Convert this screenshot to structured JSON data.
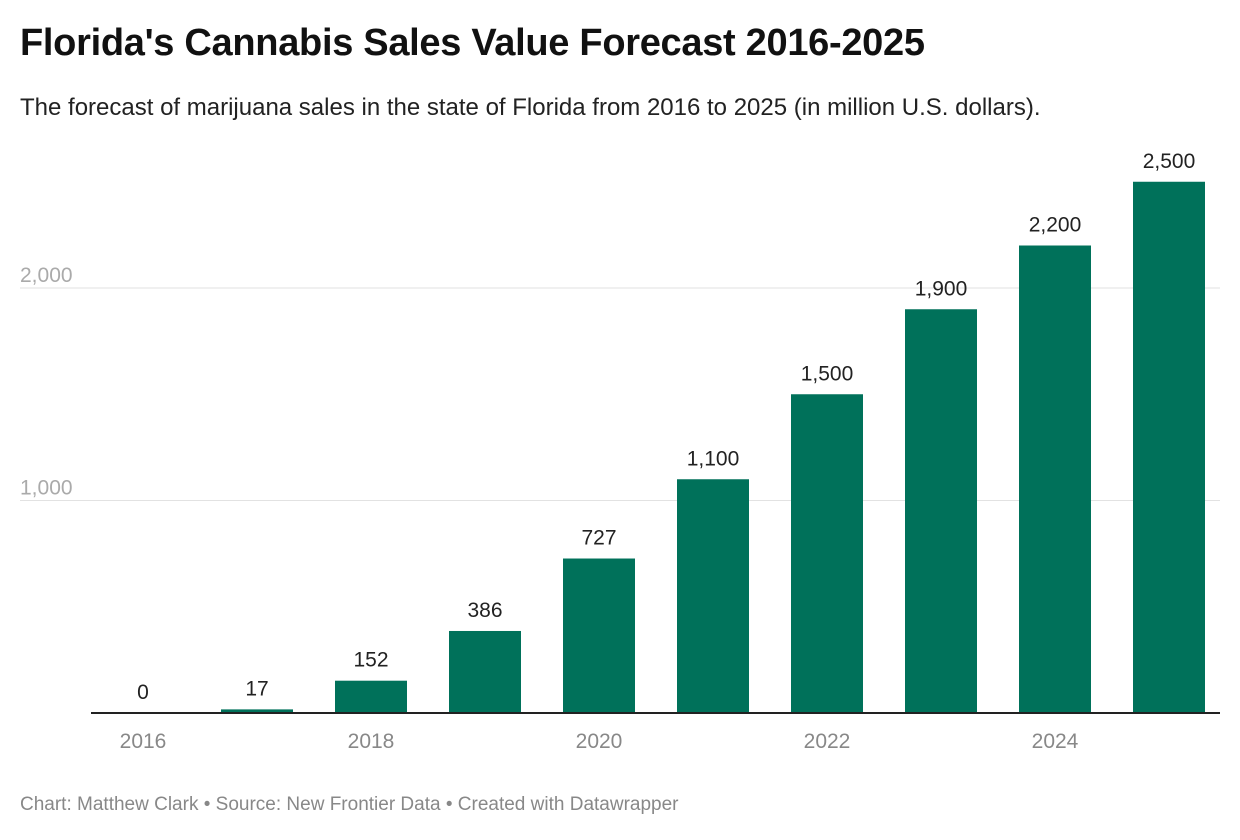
{
  "title": "Florida's Cannabis Sales Value Forecast 2016-2025",
  "subtitle": "The forecast of marijuana sales in the state of Florida from 2016 to 2025 (in million U.S. dollars).",
  "footer": "Chart: Matthew Clark • Source: New Frontier Data • Created with Datawrapper",
  "chart_data": {
    "type": "bar",
    "categories": [
      "2016",
      "2017",
      "2018",
      "2019",
      "2020",
      "2021",
      "2022",
      "2023",
      "2024",
      "2025"
    ],
    "values": [
      0,
      17,
      152,
      386,
      727,
      1100,
      1500,
      1900,
      2200,
      2500
    ],
    "data_labels": [
      "0",
      "17",
      "152",
      "386",
      "727",
      "1,100",
      "1,500",
      "1,900",
      "2,200",
      "2,500"
    ],
    "x_tick_labels": [
      "2016",
      "2018",
      "2020",
      "2022",
      "2024"
    ],
    "y_ticks": [
      1000,
      2000
    ],
    "y_tick_labels": [
      "1,000",
      "2,000"
    ],
    "ylim": [
      0,
      2500
    ],
    "grid": true,
    "bar_color": "#00715a"
  }
}
